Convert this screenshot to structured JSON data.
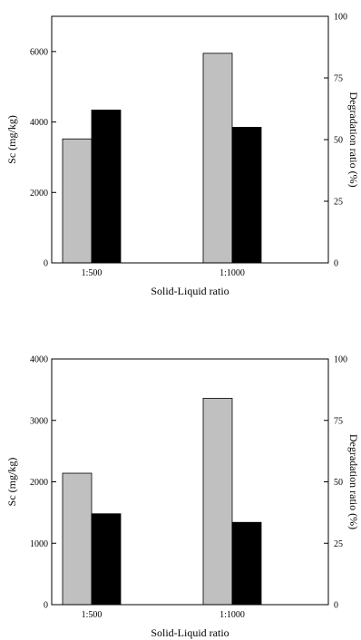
{
  "chart_data": [
    {
      "type": "bar",
      "categories": [
        "1:500",
        "1:1000"
      ],
      "series": [
        {
          "values": [
            3520,
            5950
          ],
          "color": "#c0c0c0",
          "axis": "left"
        },
        {
          "values": [
            62,
            55
          ],
          "color": "#000000",
          "axis": "right"
        }
      ],
      "xlabel": "Solid-Liquid ratio",
      "ylabel": "Sc (mg/kg)",
      "y2label": "Degradation ratio (%)",
      "ylim": [
        0,
        7000
      ],
      "yticks": [
        0,
        2000,
        4000,
        6000
      ],
      "y2lim": [
        0,
        100
      ],
      "y2ticks": [
        0,
        25,
        50,
        75,
        100
      ],
      "grid": false
    },
    {
      "type": "bar",
      "categories": [
        "1:500",
        "1:1000"
      ],
      "series": [
        {
          "values": [
            2140,
            3360
          ],
          "color": "#c0c0c0",
          "axis": "left"
        },
        {
          "values": [
            37,
            33.5
          ],
          "color": "#000000",
          "axis": "right"
        }
      ],
      "xlabel": "Solid-Liquid ratio",
      "ylabel": "Sc (mg/kg)",
      "y2label": "Degradation ratio (%)",
      "ylim": [
        0,
        4000
      ],
      "yticks": [
        0,
        1000,
        2000,
        3000,
        4000
      ],
      "y2lim": [
        0,
        100
      ],
      "y2ticks": [
        0,
        25,
        50,
        75,
        100
      ],
      "grid": false
    }
  ]
}
